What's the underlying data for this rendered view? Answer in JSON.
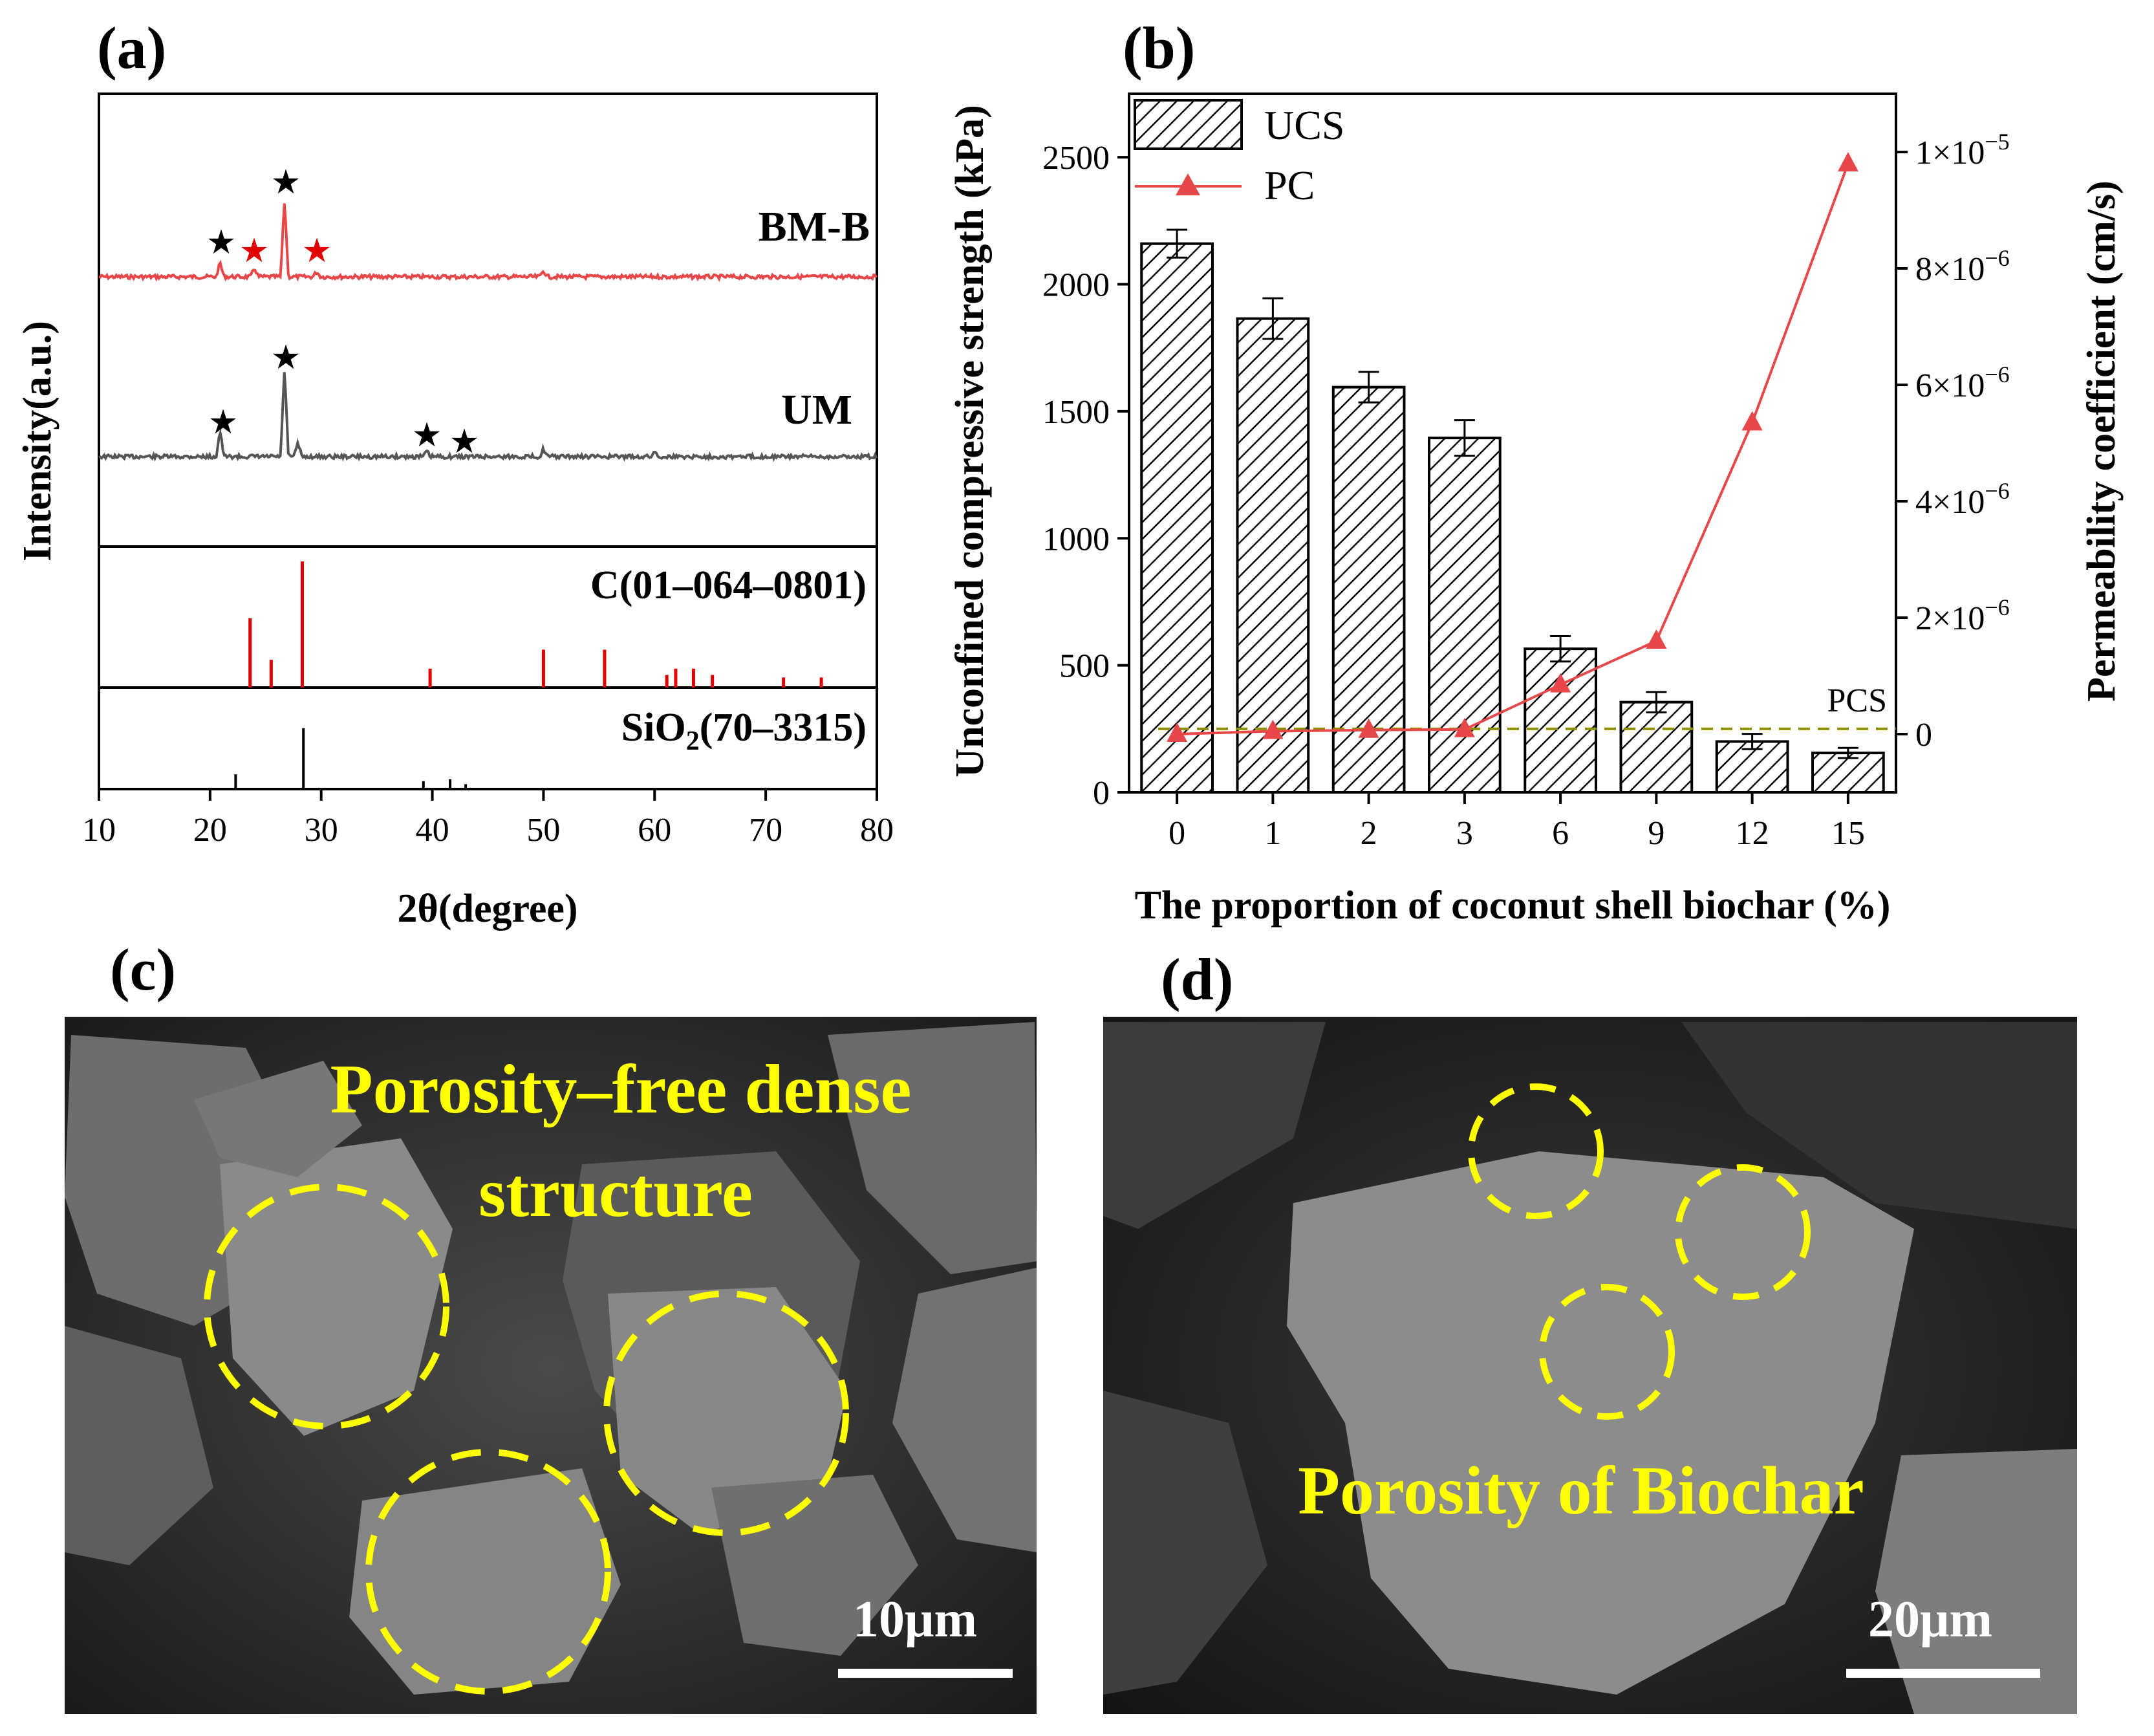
{
  "panels": {
    "a": {
      "label": "(a)",
      "ylabel": "Intensity(a.u.)",
      "xlabel": "2θ(degree)",
      "xlim": [
        10,
        80
      ],
      "xticks": [
        "10",
        "20",
        "30",
        "40",
        "50",
        "60",
        "70",
        "80"
      ],
      "traces": [
        {
          "name": "BM-B",
          "color": "#e8474a"
        },
        {
          "name": "UM",
          "color": "#555555"
        }
      ],
      "references": [
        {
          "name": "C(01–064–0801)",
          "color": "#e00000"
        },
        {
          "name_main": "SiO",
          "name_sub": "2",
          "name_rest": "(70–3315)",
          "color": "#000000"
        }
      ]
    },
    "b": {
      "label": "(b)",
      "ylabel_left": "Unconfined compressive strength (kPa)",
      "ylabel_right": "Permeability coefficient (cm/s)",
      "xlabel": "The proportion of coconut shell biochar (%)",
      "yticks_left": [
        "0",
        "500",
        "1000",
        "1500",
        "2000",
        "2500"
      ],
      "yticks_right": [
        {
          "v": 0,
          "m": "0",
          "e": ""
        },
        {
          "v": 2e-06,
          "m": "2×10",
          "e": "−6"
        },
        {
          "v": 4e-06,
          "m": "4×10",
          "e": "−6"
        },
        {
          "v": 6e-06,
          "m": "6×10",
          "e": "−6"
        },
        {
          "v": 8e-06,
          "m": "8×10",
          "e": "−6"
        },
        {
          "v": 1e-05,
          "m": "1×10",
          "e": "−5"
        }
      ],
      "legend_ucs": "UCS",
      "legend_pc": "PC",
      "pcs_label": "PCS"
    },
    "c": {
      "label": "(c)",
      "caption_line1": "Porosity–free dense",
      "caption_line2": "structure",
      "scale": "10μm"
    },
    "d": {
      "label": "(d)",
      "caption": "Porosity of Biochar",
      "scale": "20μm"
    }
  },
  "chart_data": [
    {
      "type": "line",
      "title": "",
      "xlabel": "2θ(degree)",
      "ylabel": "Intensity(a.u.)",
      "xlim": [
        10,
        80
      ],
      "series": [
        {
          "name": "BM-B",
          "peaks_2theta": [
            20.9,
            24.0,
            26.7,
            29.6
          ]
        },
        {
          "name": "UM",
          "peaks_2theta": [
            20.9,
            26.7,
            39.5,
            42.5
          ]
        },
        {
          "name": "C(01–064–0801)",
          "lines_2theta": [
            23.6,
            25.5,
            28.3,
            39.8,
            50.0,
            55.5,
            61.1,
            61.9,
            63.5,
            65.2,
            71.6,
            75.0
          ],
          "relative_intensity": [
            0.55,
            0.22,
            1.0,
            0.15,
            0.3,
            0.3,
            0.1,
            0.15,
            0.15,
            0.1,
            0.08,
            0.08
          ]
        },
        {
          "name": "SiO2(70–3315)",
          "lines_2theta": [
            22.3,
            28.4,
            39.2,
            41.6,
            43.0
          ],
          "relative_intensity": [
            0.15,
            0.62,
            0.08,
            0.1,
            0.05
          ]
        }
      ]
    },
    {
      "type": "bar",
      "title": "",
      "xlabel": "The proportion of coconut shell biochar (%)",
      "ylabel": "Unconfined compressive strength (kPa)",
      "y2label": "Permeability coefficient (cm/s)",
      "categories": [
        "0",
        "1",
        "2",
        "3",
        "6",
        "9",
        "12",
        "15"
      ],
      "ylim": [
        0,
        2750
      ],
      "y2lim": [
        -1e-06,
        1.1e-05
      ],
      "series": [
        {
          "name": "UCS",
          "axis": "left",
          "values": [
            2160,
            1865,
            1595,
            1395,
            565,
            355,
            200,
            155
          ],
          "errors": [
            55,
            80,
            60,
            70,
            50,
            40,
            30,
            20
          ]
        },
        {
          "name": "PC",
          "axis": "right",
          "type": "line",
          "color": "#e8474a",
          "values": [
            0.0,
            5e-08,
            7e-08,
            8e-08,
            8.5e-07,
            1.6e-06,
            5.35e-06,
            9.8e-06
          ]
        }
      ],
      "reference_line": {
        "name": "PCS",
        "value_left": 250
      }
    }
  ]
}
